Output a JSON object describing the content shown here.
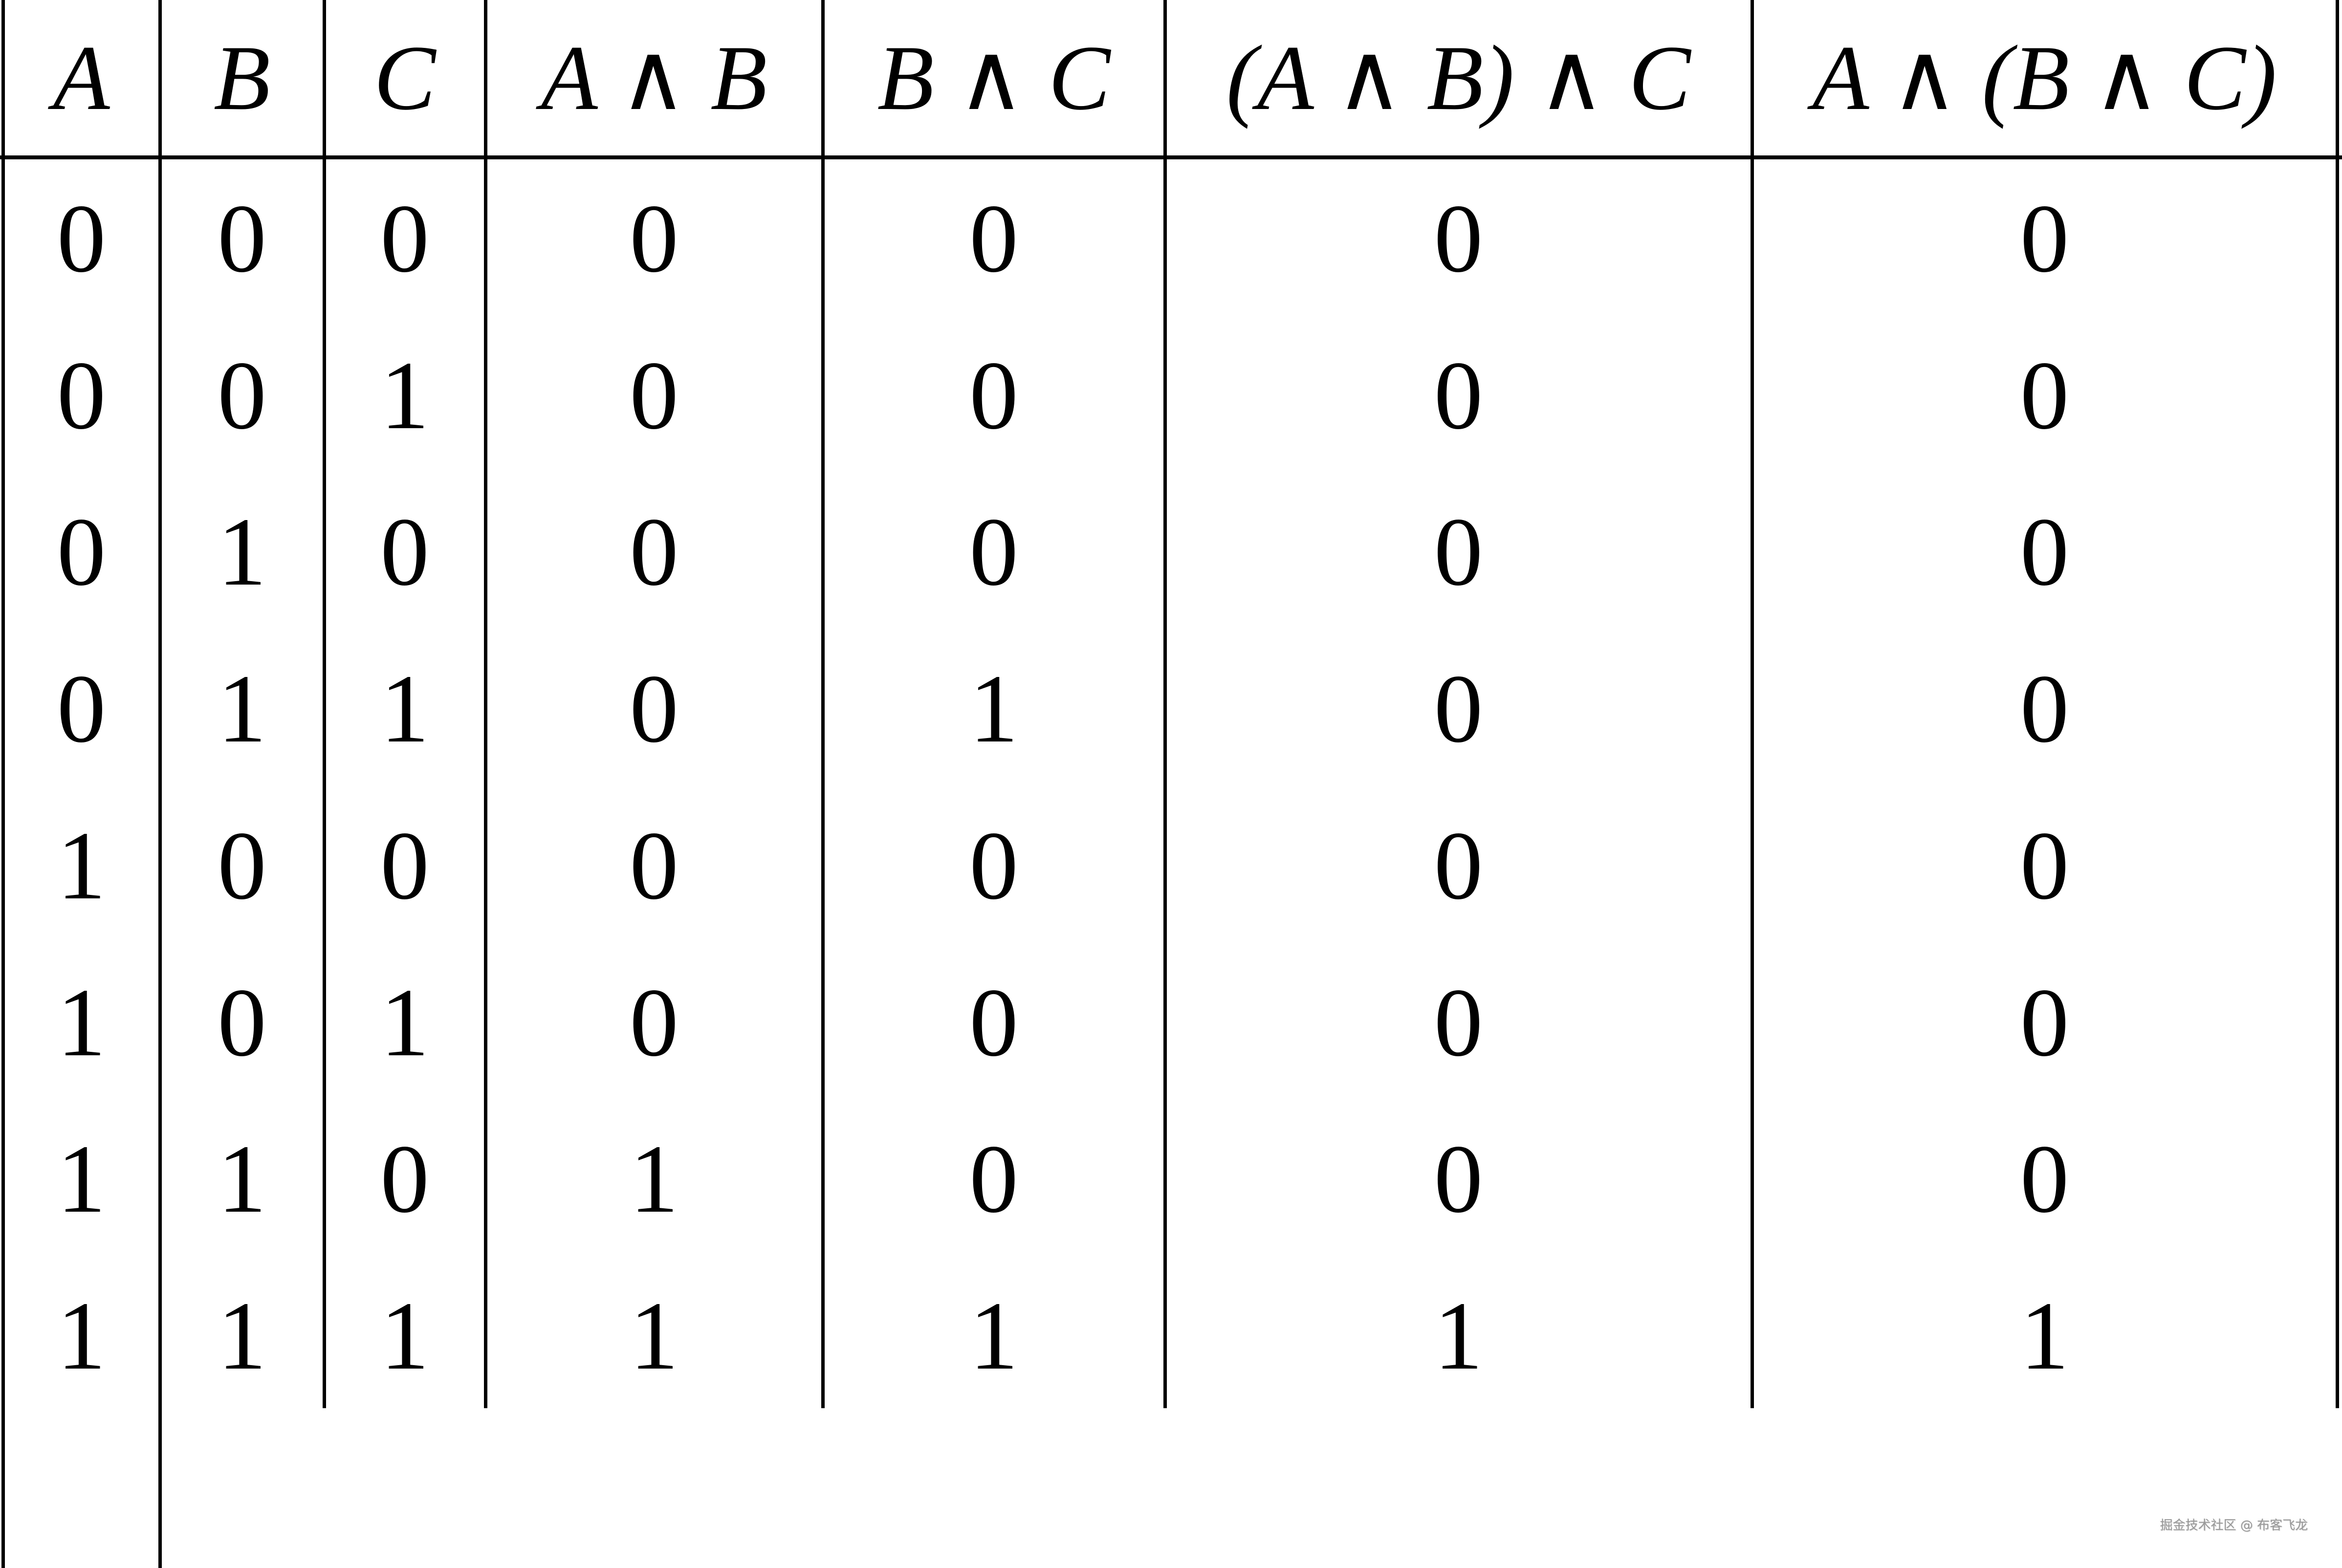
{
  "table": {
    "headers": [
      "A",
      "B",
      "C",
      "A ∧ B",
      "B ∧ C",
      "(A ∧ B) ∧ C",
      "A ∧ (B ∧ C)"
    ],
    "rows": [
      [
        "0",
        "0",
        "0",
        "0",
        "0",
        "0",
        "0"
      ],
      [
        "0",
        "0",
        "1",
        "0",
        "0",
        "0",
        "0"
      ],
      [
        "0",
        "1",
        "0",
        "0",
        "0",
        "0",
        "0"
      ],
      [
        "0",
        "1",
        "1",
        "0",
        "1",
        "0",
        "0"
      ],
      [
        "1",
        "0",
        "0",
        "0",
        "0",
        "0",
        "0"
      ],
      [
        "1",
        "0",
        "1",
        "0",
        "0",
        "0",
        "0"
      ],
      [
        "1",
        "1",
        "0",
        "1",
        "0",
        "0",
        "0"
      ],
      [
        "1",
        "1",
        "1",
        "1",
        "1",
        "1",
        "1"
      ]
    ]
  },
  "watermark": "掘金技术社区 @ 布客飞龙"
}
